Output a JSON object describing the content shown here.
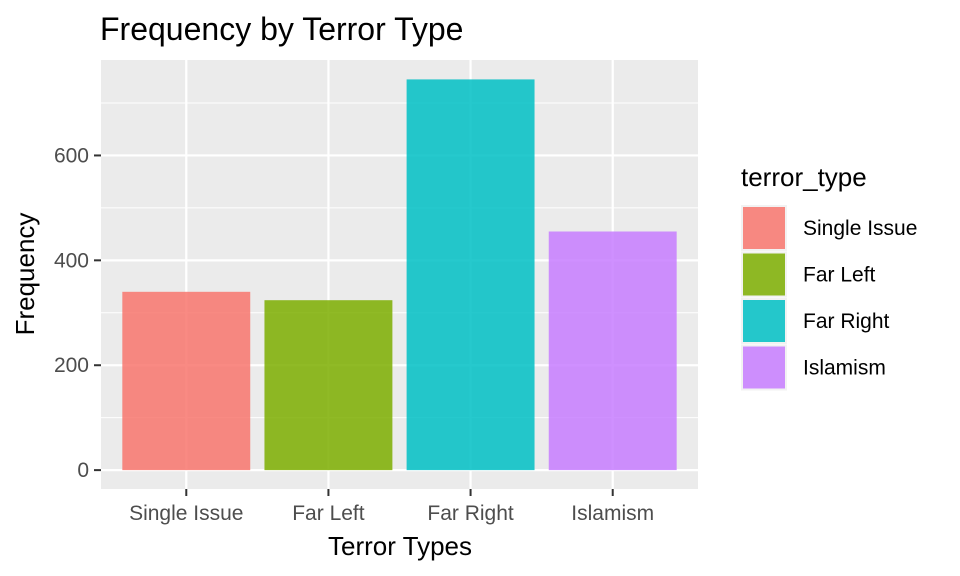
{
  "chart_data": {
    "type": "bar",
    "title": "Frequency by Terror Type",
    "xlabel": "Terror Types",
    "ylabel": "Frequency",
    "categories": [
      "Single Issue",
      "Far Left",
      "Far Right",
      "Islamism"
    ],
    "values": [
      340,
      324,
      745,
      455
    ],
    "colors": [
      "#F8766D",
      "#7CAE00",
      "#00BFC4",
      "#C77CFF"
    ],
    "bar_opacity": 0.85,
    "yticks": [
      0,
      200,
      400,
      600
    ],
    "ytick_labels": [
      "0",
      "200",
      "400",
      "600"
    ],
    "ylim": [
      -36,
      782
    ],
    "grid": true,
    "panel_background": "#EBEBEB",
    "legend": {
      "title": "terror_type",
      "position": "right",
      "items": [
        "Single Issue",
        "Far Left",
        "Far Right",
        "Islamism"
      ]
    }
  }
}
